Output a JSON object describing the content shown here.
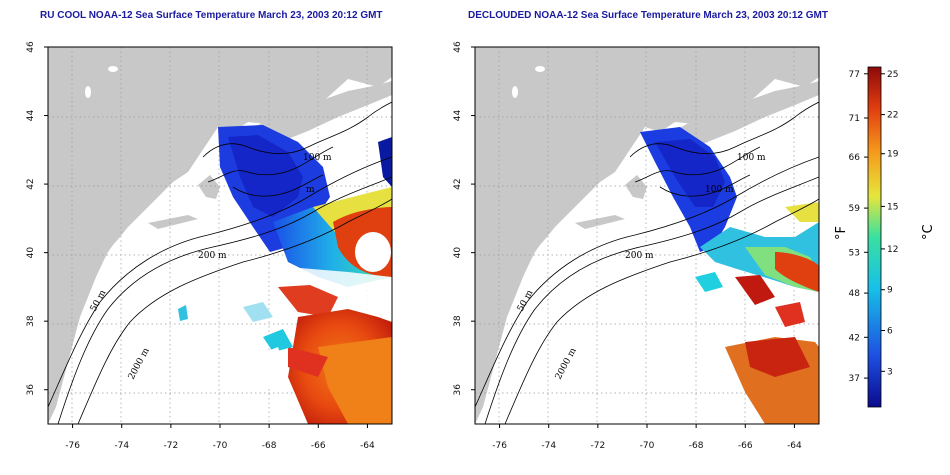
{
  "panels": [
    {
      "id": "raw",
      "title": "RU COOL NOAA-12 Sea Surface Temperature March 23, 2003 20:12 GMT"
    },
    {
      "id": "declouded",
      "title": "DECLOUDED NOAA-12 Sea Surface Temperature March 23, 2003 20:12 GMT"
    }
  ],
  "map": {
    "lon_range": [
      -77,
      -63
    ],
    "lat_range": [
      35,
      46
    ],
    "lon_ticks": [
      "-76",
      "-74",
      "-72",
      "-70",
      "-68",
      "-66",
      "-64"
    ],
    "lat_ticks": [
      "36",
      "38",
      "40",
      "42",
      "44",
      "46"
    ],
    "contour_labels": [
      "100 m",
      "200 m",
      "50 m",
      "2000 m"
    ],
    "gridlines": "dotted",
    "colors": {
      "land": "#c8c8c8",
      "ocean_nodata": "#ffffff",
      "contour": "#000000"
    }
  },
  "colorbar": {
    "fahrenheit_ticks": [
      "77",
      "71",
      "66",
      "59",
      "53",
      "48",
      "42",
      "37"
    ],
    "celsius_ticks": [
      "25",
      "22",
      "19",
      "15",
      "12",
      "9",
      "6",
      "3"
    ],
    "fahrenheit_unit": "°F",
    "celsius_unit": "°C",
    "colors": [
      "#0a0a8c",
      "#1d4fe0",
      "#18c0e8",
      "#3ae0a0",
      "#e6e63c",
      "#f59a1c",
      "#e03c10",
      "#8c0a0a"
    ]
  }
}
